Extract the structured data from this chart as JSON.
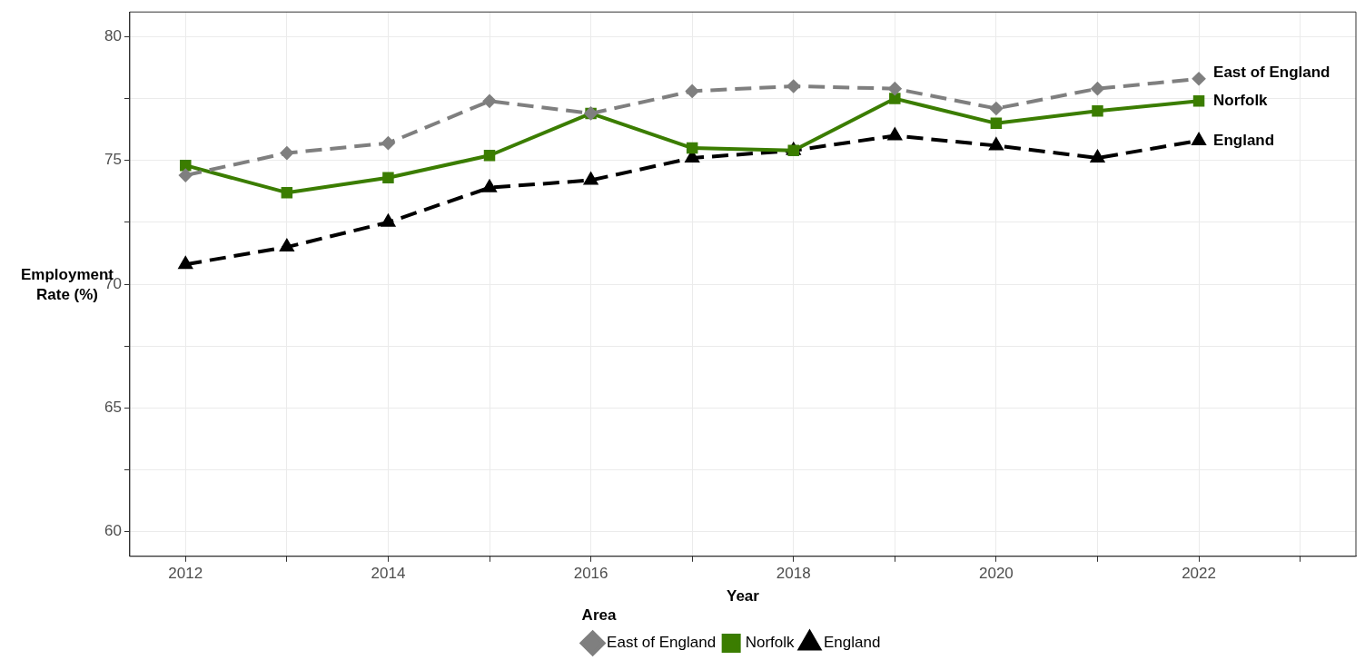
{
  "chart_data": {
    "type": "line",
    "xlabel": "Year",
    "ylabel": "Employment Rate (%)",
    "legend_title": "Area",
    "x": [
      2012,
      2013,
      2014,
      2015,
      2016,
      2017,
      2018,
      2019,
      2020,
      2021,
      2022
    ],
    "series": [
      {
        "name": "East of England",
        "color": "#7f7f7f",
        "marker": "diamond",
        "line_style": "dashed",
        "values": [
          74.4,
          75.3,
          75.7,
          77.4,
          76.9,
          77.8,
          78.0,
          77.9,
          77.1,
          77.9,
          78.3
        ]
      },
      {
        "name": "Norfolk",
        "color": "#3b7d00",
        "marker": "square",
        "line_style": "solid",
        "values": [
          74.8,
          73.7,
          74.3,
          75.2,
          76.9,
          75.5,
          75.4,
          77.5,
          76.5,
          77.0,
          77.4
        ]
      },
      {
        "name": "England",
        "color": "#000000",
        "marker": "triangle",
        "line_style": "dashed",
        "values": [
          70.8,
          71.5,
          72.5,
          73.9,
          74.2,
          75.1,
          75.4,
          76.0,
          75.6,
          75.1,
          75.8
        ]
      }
    ],
    "xlim": [
      2011.45,
      2023.55
    ],
    "xticks": [
      2012,
      {
        "value": 2013,
        "label": null
      },
      2014,
      {
        "value": 2015,
        "label": null
      },
      2016,
      {
        "value": 2017,
        "label": null
      },
      2018,
      {
        "value": 2019,
        "label": null
      },
      2020,
      {
        "value": 2021,
        "label": null
      },
      2022,
      {
        "value": 2023,
        "label": null
      }
    ],
    "ylim": [
      59,
      81
    ],
    "yticks": [
      60,
      {
        "value": 62.5,
        "label": null
      },
      65,
      {
        "value": 67.5,
        "label": null
      },
      70,
      {
        "value": 72.5,
        "label": null
      },
      75,
      {
        "value": 77.5,
        "label": null
      },
      80
    ],
    "grid": true,
    "legend": "bottom"
  }
}
